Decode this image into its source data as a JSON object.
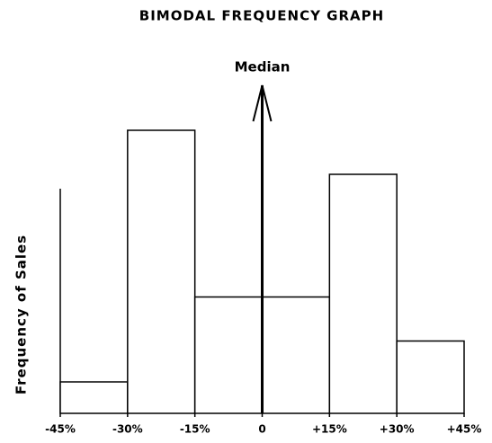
{
  "chart_data": {
    "type": "histogram",
    "title": "BIMODAL FREQUENCY GRAPH",
    "y_label": "Frequency of Sales",
    "bins": [
      -45,
      -30,
      -15,
      15,
      30,
      45
    ],
    "values": [
      1,
      9,
      3.7,
      7.6,
      2.3
    ],
    "xlim": [
      -45,
      45
    ],
    "ylim": [
      0,
      10
    ],
    "xticks": [
      {
        "value": -45,
        "label": "-45%"
      },
      {
        "value": -30,
        "label": "-30%"
      },
      {
        "value": -15,
        "label": "-15%"
      },
      0,
      {
        "value": 15,
        "label": "+15%"
      },
      {
        "value": 30,
        "label": "+30%"
      },
      {
        "value": 45,
        "label": "+45%"
      }
    ],
    "annotations": [
      {
        "text": "Median",
        "x": 0
      }
    ],
    "color": "#ffffff",
    "edge_color": "#000000"
  }
}
